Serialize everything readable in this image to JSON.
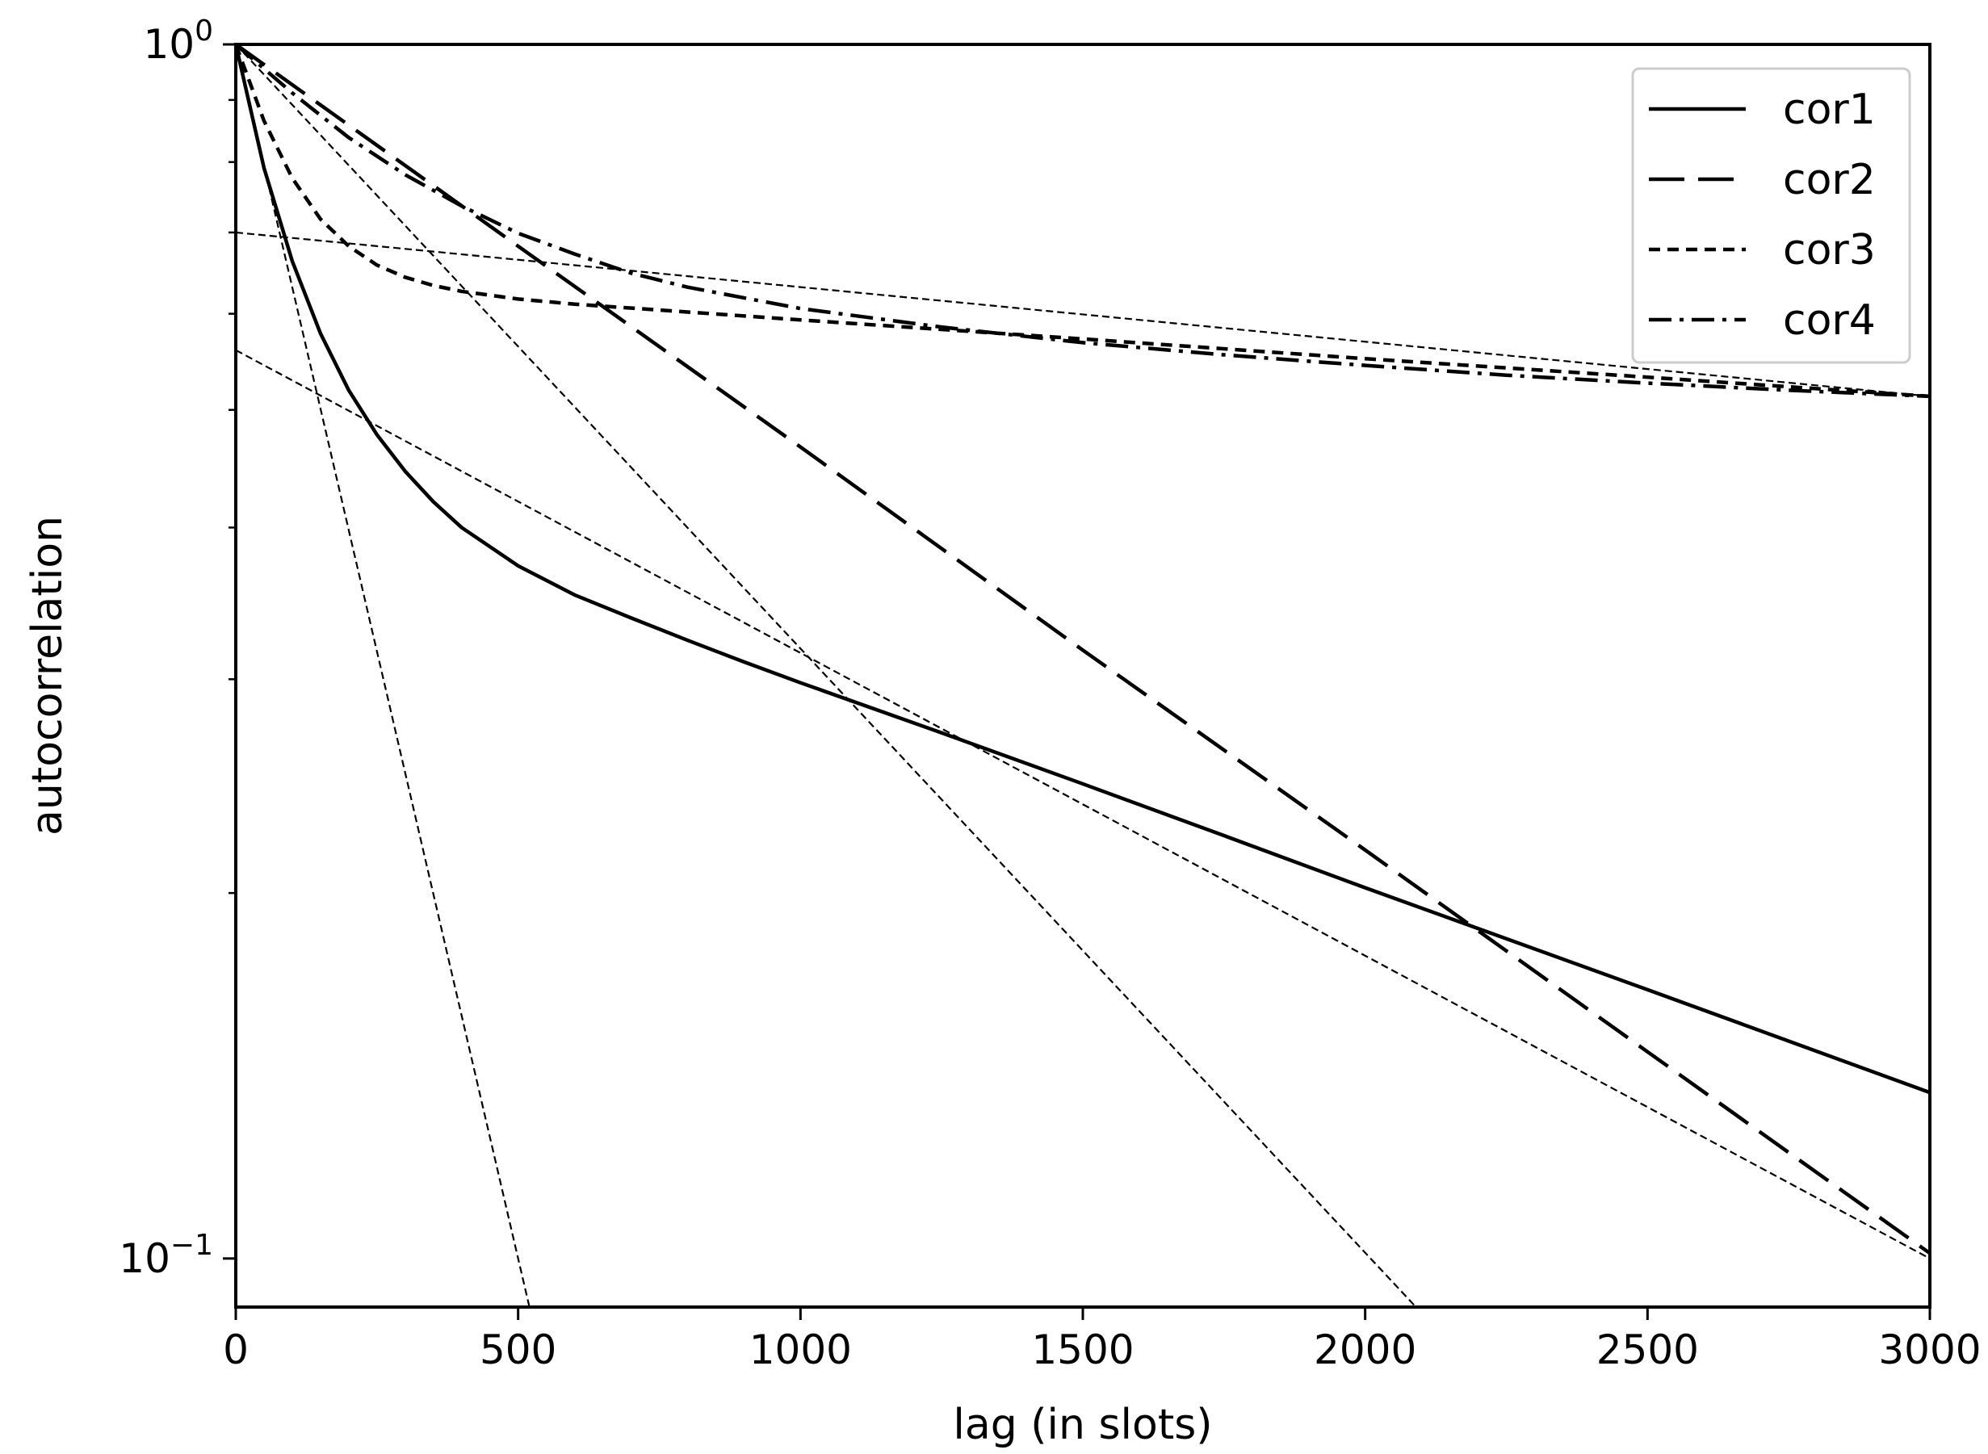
{
  "chart_data": {
    "type": "line",
    "title": "",
    "xlabel": "lag (in slots)",
    "ylabel": "autocorrelation",
    "xlim": [
      0,
      3000
    ],
    "ylim": [
      0.0912,
      1.0
    ],
    "yscale": "log",
    "grid": false,
    "legend_position": "top-right",
    "x_ticks": [
      0,
      500,
      1000,
      1500,
      2000,
      2500,
      3000
    ],
    "y_ticks": [
      {
        "value": 1.0,
        "base": "10",
        "exp": "0"
      },
      {
        "value": 0.1,
        "base": "10",
        "exp": "−1"
      }
    ],
    "y_minor_ticks": [
      0.2,
      0.3,
      0.4,
      0.5,
      0.6,
      0.7,
      0.8,
      0.9
    ],
    "series": [
      {
        "name": "cor1",
        "style": "solid",
        "x": [
          0,
          50,
          100,
          150,
          200,
          250,
          300,
          350,
          400,
          500,
          600,
          700,
          800,
          900,
          1000,
          1250,
          1500,
          1750,
          2000,
          2500,
          3000
        ],
        "y": [
          1.0,
          0.791,
          0.663,
          0.578,
          0.519,
          0.477,
          0.445,
          0.42,
          0.4,
          0.372,
          0.352,
          0.337,
          0.323,
          0.31,
          0.298,
          0.271,
          0.246,
          0.223,
          0.202,
          0.1665,
          0.137
        ]
      },
      {
        "name": "cor2",
        "style": "dashed",
        "x": [
          0,
          500,
          1000,
          1500,
          2000,
          2500,
          3000
        ],
        "y": [
          1.0,
          0.682,
          0.466,
          0.317,
          0.217,
          0.148,
          0.101
        ]
      },
      {
        "name": "cor3",
        "style": "dotted",
        "x": [
          0,
          50,
          100,
          150,
          200,
          250,
          300,
          350,
          400,
          500,
          600,
          800,
          1000,
          1500,
          2000,
          2500,
          3000
        ],
        "y": [
          1.0,
          0.865,
          0.776,
          0.718,
          0.682,
          0.658,
          0.643,
          0.633,
          0.626,
          0.617,
          0.611,
          0.602,
          0.593,
          0.572,
          0.551,
          0.532,
          0.513
        ]
      },
      {
        "name": "cor4",
        "style": "dashdot",
        "x": [
          0,
          100,
          200,
          300,
          400,
          500,
          600,
          700,
          800,
          1000,
          1250,
          1500,
          1750,
          2000,
          2250,
          2500,
          2750,
          3000
        ],
        "y": [
          1.0,
          0.912,
          0.838,
          0.781,
          0.736,
          0.699,
          0.672,
          0.648,
          0.631,
          0.606,
          0.585,
          0.568,
          0.555,
          0.544,
          0.534,
          0.526,
          0.519,
          0.513
        ]
      }
    ],
    "reference_lines": [
      {
        "x": [
          0,
          520
        ],
        "y": [
          1.0,
          0.0912
        ]
      },
      {
        "x": [
          0,
          2090
        ],
        "y": [
          1.0,
          0.0912
        ]
      },
      {
        "x": [
          0,
          3000
        ],
        "y": [
          0.7,
          0.513
        ]
      },
      {
        "x": [
          0,
          3000
        ],
        "y": [
          0.56,
          0.1
        ]
      }
    ]
  }
}
